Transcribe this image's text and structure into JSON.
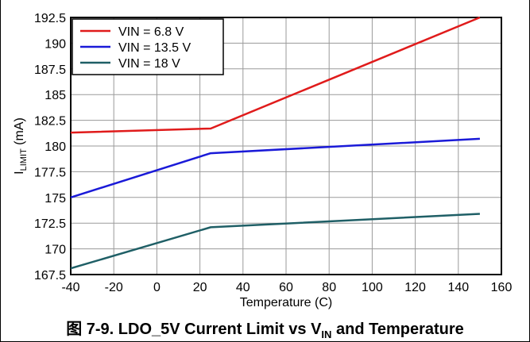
{
  "chart_data": {
    "type": "line",
    "xlabel": "Temperature (C)",
    "ylabel": {
      "main": "I",
      "sub": "LIMIT",
      "rest": " (mA)"
    },
    "xlim": [
      -40,
      160
    ],
    "ylim": [
      167.5,
      192.5
    ],
    "xticks": [
      -40,
      -20,
      0,
      20,
      40,
      60,
      80,
      100,
      120,
      140,
      160
    ],
    "yticks": [
      "167.5",
      "170",
      "172.5",
      "175",
      "177.5",
      "180",
      "182.5",
      "185",
      "187.5",
      "190",
      "192.5"
    ],
    "grid": true,
    "legend_position": "top-left",
    "series": [
      {
        "name": "VIN = 6.8 V",
        "color": "#e01b1b",
        "x": [
          -40,
          25,
          150
        ],
        "y": [
          181.3,
          181.7,
          192.5
        ]
      },
      {
        "name": "VIN = 13.5 V",
        "color": "#1a1ad8",
        "x": [
          -40,
          25,
          150
        ],
        "y": [
          175.0,
          179.3,
          180.7
        ]
      },
      {
        "name": "VIN = 18 V",
        "color": "#1f5f66",
        "x": [
          -40,
          25,
          150
        ],
        "y": [
          168.1,
          172.1,
          173.4
        ]
      }
    ]
  },
  "caption": {
    "prefix": "图 7-9. LDO_5V Current Limit vs V",
    "sub": "IN",
    "suffix": " and Temperature"
  }
}
